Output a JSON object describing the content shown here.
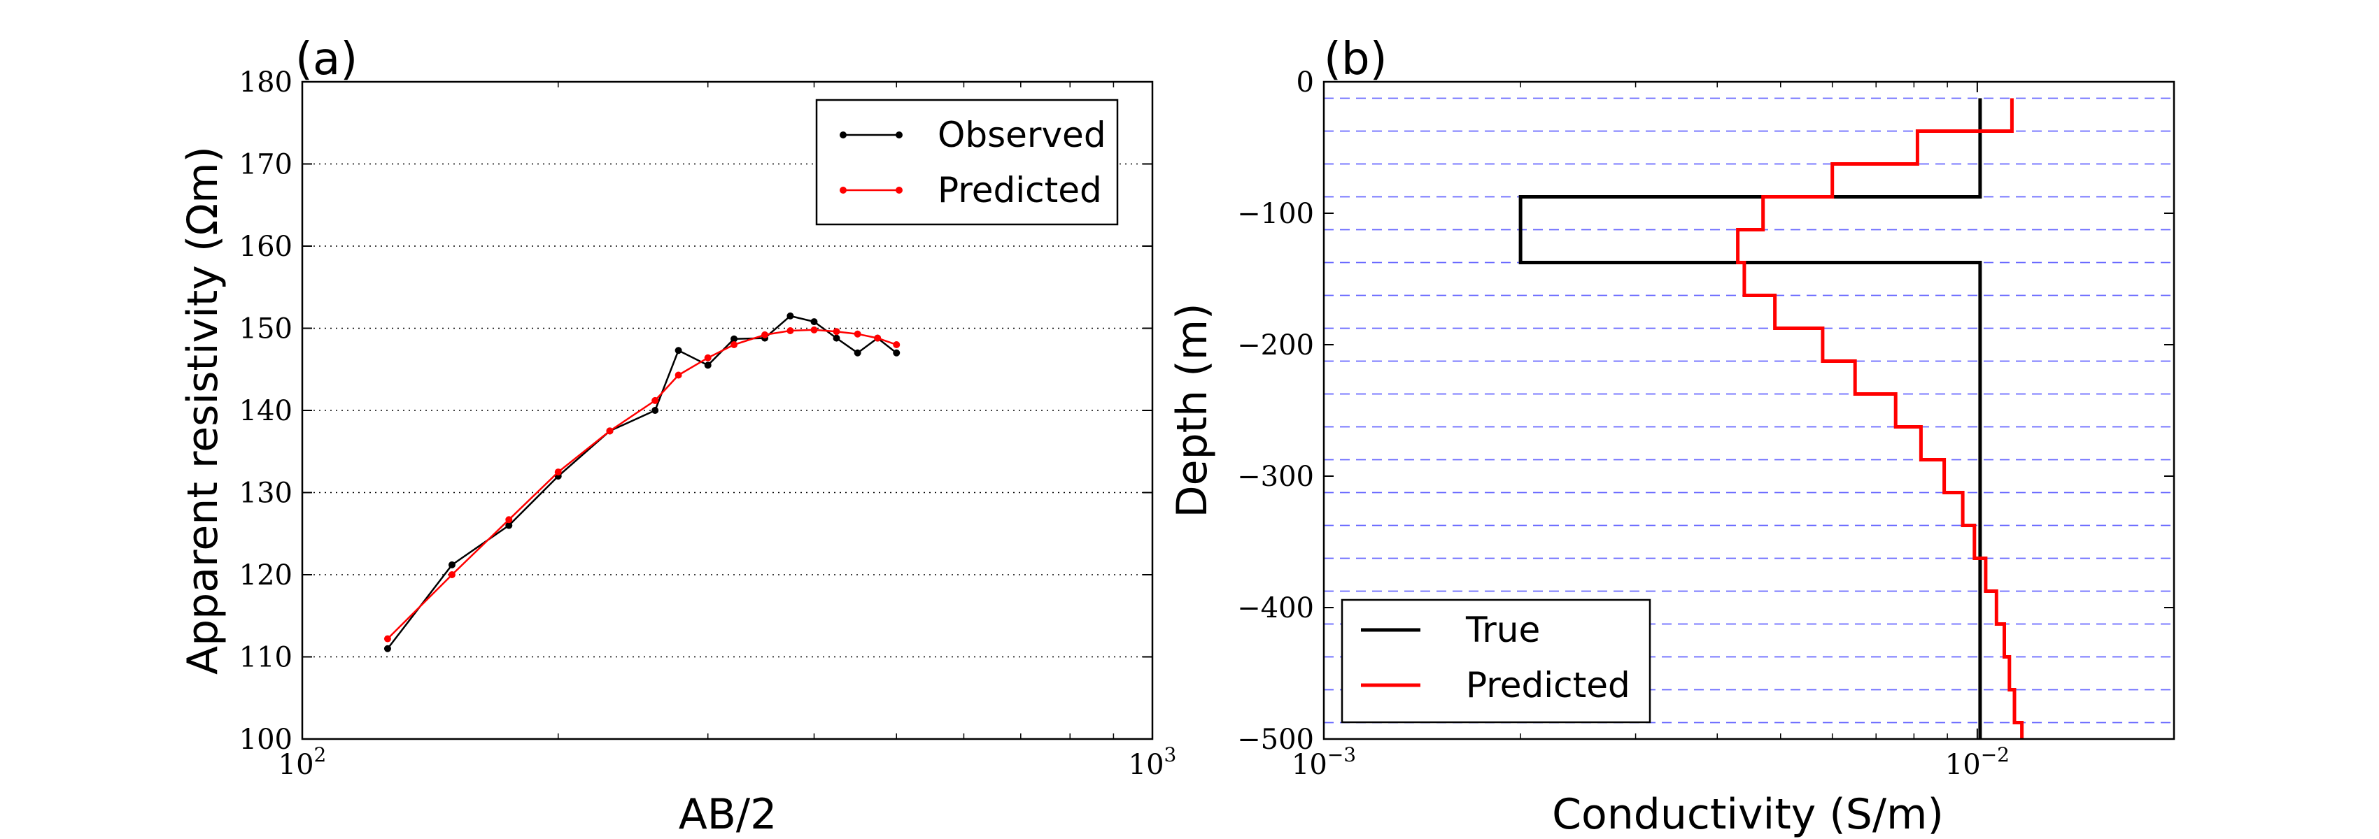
{
  "chart_data": [
    {
      "type": "line",
      "panel_label": "(a)",
      "xlabel": "AB/2",
      "ylabel": "Apparent resistivity (Ωm)",
      "xscale": "log",
      "xlim": [
        100,
        1000
      ],
      "ylim": [
        100,
        180
      ],
      "xticks": [
        100,
        1000
      ],
      "xtick_labels": [
        {
          "base": "10",
          "exp": "2"
        },
        {
          "base": "10",
          "exp": "3"
        }
      ],
      "yticks": [
        100,
        110,
        120,
        130,
        140,
        150,
        160,
        170,
        180
      ],
      "ytick_labels": [
        "100",
        "110",
        "120",
        "130",
        "140",
        "150",
        "160",
        "170",
        "180"
      ],
      "grid": "y dotted",
      "legend": {
        "position": "top-right"
      },
      "series": [
        {
          "name": "Observed",
          "color": "#000000",
          "marker": "dot",
          "x": [
            126,
            150,
            175,
            200,
            230,
            260,
            277,
            300,
            322,
            350,
            375,
            400,
            425,
            450,
            475,
            500
          ],
          "y": [
            111.0,
            121.2,
            126.0,
            132.0,
            137.5,
            140.0,
            147.3,
            145.5,
            148.7,
            148.8,
            151.5,
            150.8,
            148.8,
            147.0,
            148.8,
            147.0
          ]
        },
        {
          "name": "Predicted",
          "color": "#ff0000",
          "marker": "dot",
          "x": [
            126,
            150,
            175,
            200,
            230,
            260,
            277,
            300,
            322,
            350,
            375,
            400,
            425,
            450,
            475,
            500
          ],
          "y": [
            112.2,
            120.0,
            126.7,
            132.5,
            137.5,
            141.2,
            144.3,
            146.4,
            148.0,
            149.2,
            149.7,
            149.8,
            149.6,
            149.3,
            148.8,
            148.0
          ]
        }
      ]
    },
    {
      "type": "line",
      "panel_label": "(b)",
      "xlabel": "Conductivity (S/m)",
      "ylabel": "Depth (m)",
      "xscale": "log",
      "xlim": [
        0.001,
        0.02
      ],
      "ylim": [
        -500,
        0
      ],
      "xticks": [
        0.001,
        0.01
      ],
      "xtick_labels": [
        {
          "base": "10",
          "exp": "−3"
        },
        {
          "base": "10",
          "exp": "−2"
        }
      ],
      "yticks": [
        0,
        -100,
        -200,
        -300,
        -400,
        -500
      ],
      "ytick_labels": [
        "0",
        "−100",
        "−200",
        "−300",
        "−400",
        "−500"
      ],
      "layer_boundaries": [
        -12.5,
        -37.5,
        -62.5,
        -87.5,
        -112.5,
        -137.5,
        -162.5,
        -187.5,
        -212.5,
        -237.5,
        -262.5,
        -287.5,
        -312.5,
        -337.5,
        -362.5,
        -387.5,
        -412.5,
        -437.5,
        -462.5,
        -487.5
      ],
      "layer_boundary_color": "#0000ff",
      "legend": {
        "position": "bottom-left"
      },
      "series": [
        {
          "name": "True",
          "color": "#000000",
          "layers": [
            {
              "top": -12.5,
              "bottom": -87.5,
              "value": 0.0101
            },
            {
              "top": -87.5,
              "bottom": -137.5,
              "value": 0.002
            },
            {
              "top": -137.5,
              "bottom": -500,
              "value": 0.0101
            }
          ]
        },
        {
          "name": "Predicted",
          "color": "#ff0000",
          "layers": [
            {
              "top": -12.5,
              "bottom": -37.5,
              "value": 0.0113
            },
            {
              "top": -37.5,
              "bottom": -62.5,
              "value": 0.0081
            },
            {
              "top": -62.5,
              "bottom": -87.5,
              "value": 0.006
            },
            {
              "top": -87.5,
              "bottom": -112.5,
              "value": 0.0047
            },
            {
              "top": -112.5,
              "bottom": -137.5,
              "value": 0.0043
            },
            {
              "top": -137.5,
              "bottom": -162.5,
              "value": 0.0044
            },
            {
              "top": -162.5,
              "bottom": -187.5,
              "value": 0.0049
            },
            {
              "top": -187.5,
              "bottom": -212.5,
              "value": 0.0058
            },
            {
              "top": -212.5,
              "bottom": -237.5,
              "value": 0.0065
            },
            {
              "top": -237.5,
              "bottom": -262.5,
              "value": 0.0075
            },
            {
              "top": -262.5,
              "bottom": -287.5,
              "value": 0.0082
            },
            {
              "top": -287.5,
              "bottom": -312.5,
              "value": 0.0089
            },
            {
              "top": -312.5,
              "bottom": -337.5,
              "value": 0.0095
            },
            {
              "top": -337.5,
              "bottom": -362.5,
              "value": 0.0099
            },
            {
              "top": -362.5,
              "bottom": -387.5,
              "value": 0.0103
            },
            {
              "top": -387.5,
              "bottom": -412.5,
              "value": 0.0107
            },
            {
              "top": -412.5,
              "bottom": -437.5,
              "value": 0.011
            },
            {
              "top": -437.5,
              "bottom": -462.5,
              "value": 0.0112
            },
            {
              "top": -462.5,
              "bottom": -487.5,
              "value": 0.0114
            },
            {
              "top": -487.5,
              "bottom": -500,
              "value": 0.0117
            }
          ]
        }
      ]
    }
  ]
}
